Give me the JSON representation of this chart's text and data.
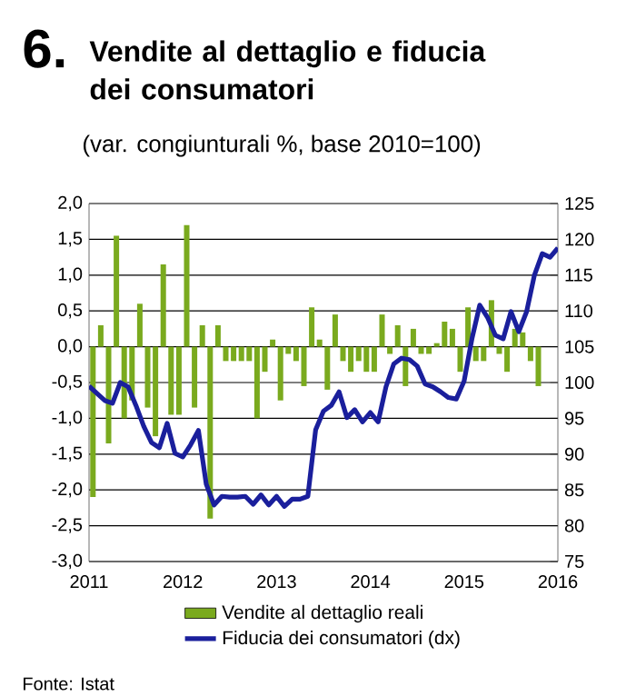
{
  "chart_data": {
    "type": "bar",
    "title": "Vendite al dettaglio e fiducia dei consumatori",
    "subtitle": "(var. congiunturali %, base 2010=100)",
    "annotations": [
      "6.",
      "Fonte: Istat"
    ],
    "xlim": [
      "2011-01",
      "2016-01"
    ],
    "xticks": [
      "2011",
      "2012",
      "2013",
      "2014",
      "2015",
      "2016"
    ],
    "ylim": [
      -3,
      2
    ],
    "yticks": [
      {
        "value": -3,
        "label": "-3,0"
      },
      {
        "value": -2.5,
        "label": "-2,5"
      },
      {
        "value": -2,
        "label": "-2,0"
      },
      {
        "value": -1.5,
        "label": "-1,5"
      },
      {
        "value": -1,
        "label": "-1,0"
      },
      {
        "value": -0.5,
        "label": "-0,5"
      },
      {
        "value": 0,
        "label": "0,0"
      },
      {
        "value": 0.5,
        "label": "0,5"
      },
      {
        "value": 1,
        "label": "1,0"
      },
      {
        "value": 1.5,
        "label": "1,5"
      },
      {
        "value": 2,
        "label": "2,0"
      }
    ],
    "y2lim": [
      75,
      125
    ],
    "y2ticks": [
      75,
      80,
      85,
      90,
      95,
      100,
      105,
      110,
      115,
      120,
      125
    ],
    "grid": "y",
    "legend": "bottom",
    "series": [
      {
        "name": "Vendite al dettaglio reali",
        "color": "#7aaa1e",
        "x": [
          "2011-01",
          "2011-02",
          "2011-03",
          "2011-04",
          "2011-05",
          "2011-06",
          "2011-07",
          "2011-08",
          "2011-09",
          "2011-10",
          "2011-11",
          "2011-12",
          "2012-01",
          "2012-02",
          "2012-03",
          "2012-04",
          "2012-05",
          "2012-06",
          "2012-07",
          "2012-08",
          "2012-09",
          "2012-10",
          "2012-11",
          "2012-12",
          "2013-01",
          "2013-02",
          "2013-03",
          "2013-04",
          "2013-05",
          "2013-06",
          "2013-07",
          "2013-08",
          "2013-09",
          "2013-10",
          "2013-11",
          "2013-12",
          "2014-01",
          "2014-02",
          "2014-03",
          "2014-04",
          "2014-05",
          "2014-06",
          "2014-07",
          "2014-08",
          "2014-09",
          "2014-10",
          "2014-11",
          "2014-12",
          "2015-01",
          "2015-02",
          "2015-03",
          "2015-04",
          "2015-05",
          "2015-06",
          "2015-07",
          "2015-08",
          "2015-09",
          "2015-10"
        ],
        "values": [
          -2.1,
          0.3,
          -1.35,
          1.55,
          -1.0,
          -0.75,
          0.6,
          -0.85,
          -1.25,
          1.15,
          -0.95,
          -0.95,
          1.7,
          -0.85,
          0.3,
          -2.4,
          0.3,
          -0.2,
          -0.2,
          -0.2,
          -0.2,
          -1.0,
          -0.35,
          0.1,
          -0.75,
          -0.1,
          -0.2,
          -0.55,
          0.55,
          0.1,
          -0.6,
          0.45,
          -0.2,
          -0.35,
          -0.2,
          -0.35,
          -0.35,
          0.45,
          -0.1,
          0.3,
          -0.55,
          0.25,
          -0.1,
          -0.1,
          0.05,
          0.35,
          0.25,
          -0.35,
          0.55,
          -0.2,
          -0.2,
          0.65,
          -0.1,
          -0.35,
          0.25,
          0.2,
          -0.2,
          -0.55
        ]
      },
      {
        "name": "Fiducia dei consumatori (dx)",
        "type": "line",
        "axis": "y2",
        "color": "#1a1f9c",
        "x": [
          "2011-01",
          "2011-02",
          "2011-03",
          "2011-04",
          "2011-05",
          "2011-06",
          "2011-07",
          "2011-08",
          "2011-09",
          "2011-10",
          "2011-11",
          "2011-12",
          "2012-01",
          "2012-02",
          "2012-03",
          "2012-04",
          "2012-05",
          "2012-06",
          "2012-07",
          "2012-08",
          "2012-09",
          "2012-10",
          "2012-11",
          "2012-12",
          "2013-01",
          "2013-02",
          "2013-03",
          "2013-04",
          "2013-05",
          "2013-06",
          "2013-07",
          "2013-08",
          "2013-09",
          "2013-10",
          "2013-11",
          "2013-12",
          "2014-01",
          "2014-02",
          "2014-03",
          "2014-04",
          "2014-05",
          "2014-06",
          "2014-07",
          "2014-08",
          "2014-09",
          "2014-10",
          "2014-11",
          "2014-12",
          "2015-01",
          "2015-02",
          "2015-03",
          "2015-04",
          "2015-05",
          "2015-06",
          "2015-07",
          "2015-08",
          "2015-09",
          "2015-10",
          "2015-11",
          "2015-12",
          "2016-01"
        ],
        "values": [
          99.5,
          98.5,
          97.5,
          97.1,
          100.0,
          99.4,
          96.8,
          93.9,
          91.6,
          90.9,
          94.3,
          90.1,
          89.6,
          91.3,
          93.3,
          85.8,
          82.9,
          84.1,
          84.0,
          84.0,
          84.1,
          83.0,
          84.3,
          82.9,
          84.1,
          82.7,
          83.7,
          83.7,
          84.1,
          93.4,
          96.0,
          96.8,
          98.7,
          95.1,
          96.2,
          94.5,
          95.8,
          94.5,
          99.4,
          102.6,
          103.4,
          103.2,
          102.3,
          99.8,
          99.4,
          98.7,
          97.9,
          97.7,
          100.2,
          106.1,
          110.8,
          109.1,
          106.6,
          106.1,
          109.9,
          107.1,
          109.9,
          115.0,
          118.0,
          117.5,
          118.8
        ]
      }
    ]
  }
}
